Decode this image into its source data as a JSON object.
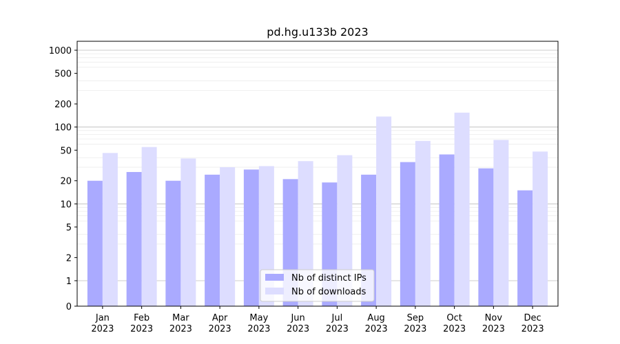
{
  "chart_data": {
    "type": "bar",
    "title": "pd.hg.u133b 2023",
    "xlabel": "",
    "ylabel": "",
    "yscale": "symlog",
    "ylim": [
      0,
      1200
    ],
    "ytick_labels": [
      "0",
      "1",
      "2",
      "5",
      "10",
      "20",
      "50",
      "100",
      "200",
      "500",
      "1000"
    ],
    "yticks": [
      0,
      1,
      2,
      5,
      10,
      20,
      50,
      100,
      200,
      500,
      1000
    ],
    "categories": [
      [
        "Jan",
        "2023"
      ],
      [
        "Feb",
        "2023"
      ],
      [
        "Mar",
        "2023"
      ],
      [
        "Apr",
        "2023"
      ],
      [
        "May",
        "2023"
      ],
      [
        "Jun",
        "2023"
      ],
      [
        "Jul",
        "2023"
      ],
      [
        "Aug",
        "2023"
      ],
      [
        "Sep",
        "2023"
      ],
      [
        "Oct",
        "2023"
      ],
      [
        "Nov",
        "2023"
      ],
      [
        "Dec",
        "2023"
      ]
    ],
    "series": [
      {
        "name": "Nb of distinct IPs",
        "color": "#aaaaff",
        "values": [
          20,
          26,
          20,
          24,
          28,
          21,
          19,
          24,
          35,
          44,
          29,
          15
        ]
      },
      {
        "name": "Nb of downloads",
        "color": "#ddddff",
        "values": [
          46,
          55,
          39,
          30,
          31,
          36,
          43,
          137,
          66,
          154,
          68,
          48
        ]
      }
    ],
    "legend_position": "bottom-center",
    "grid": "horizontal"
  }
}
